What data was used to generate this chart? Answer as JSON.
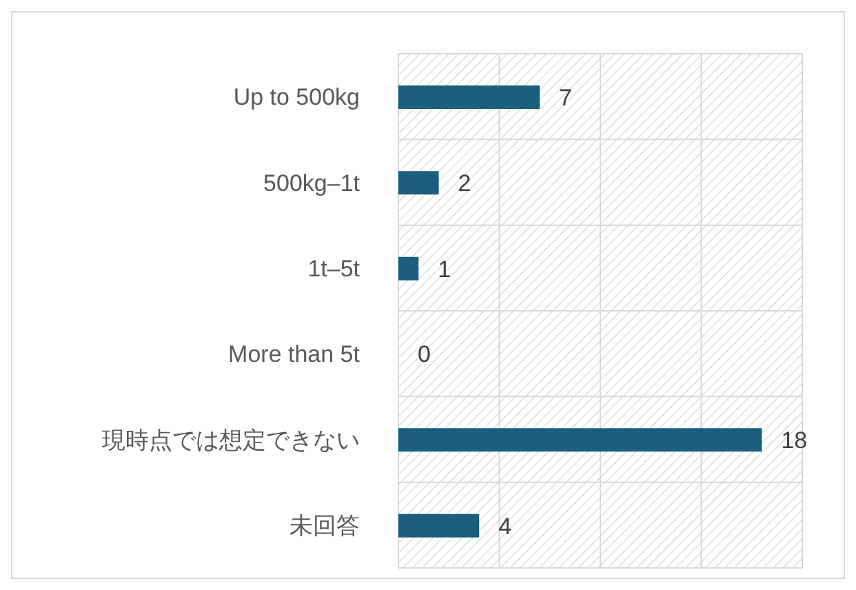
{
  "chart_data": {
    "type": "bar",
    "orientation": "horizontal",
    "categories": [
      "Up to 500kg",
      "500kg–1t",
      "1t–5t",
      "More than 5t",
      "現時点では想定できない",
      "未回答"
    ],
    "values": [
      7,
      2,
      1,
      0,
      18,
      4
    ],
    "color": "#1b5e7e",
    "tick_labels": "y",
    "grid": true,
    "data_labels": true
  }
}
